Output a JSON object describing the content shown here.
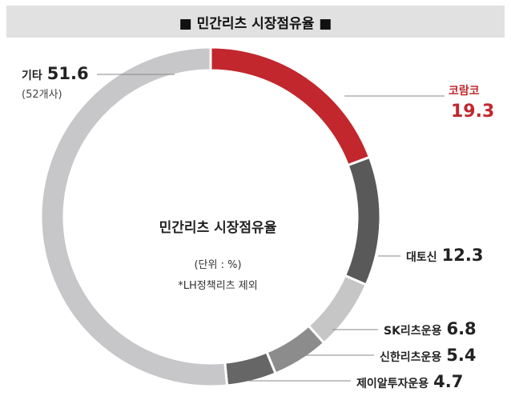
{
  "title": "■ 민간리츠 시장점유율 ■",
  "center": {
    "title": "민간리츠 시장점유율",
    "unit": "(단위 : %)",
    "note": "*LH정책리츠 제외"
  },
  "chart_data": {
    "type": "pie",
    "title": "민간리츠 시장점유율",
    "unit": "%",
    "slices": [
      {
        "label": "코람코",
        "value": 19.3,
        "color": "#c1272d"
      },
      {
        "label": "대토신",
        "value": 12.3,
        "color": "#595959"
      },
      {
        "label": "SK리츠운용",
        "value": 6.8,
        "color": "#c6c6c6"
      },
      {
        "label": "신한리츠운용",
        "value": 5.4,
        "color": "#8c8c8c"
      },
      {
        "label": "제이알투자운용",
        "value": 4.7,
        "color": "#666666"
      },
      {
        "label": "기타",
        "value": 51.6,
        "color": "#c7c7c9",
        "sub": "(52개사)"
      }
    ]
  }
}
